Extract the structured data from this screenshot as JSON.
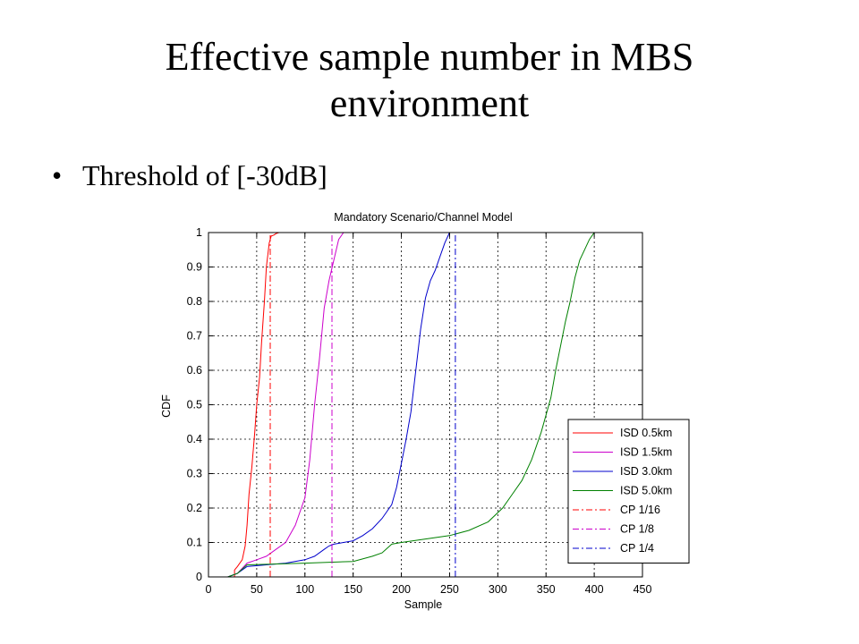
{
  "slide": {
    "title_line1": "Effective sample number in MBS",
    "title_line2": "environment",
    "bullets": [
      "Threshold of [-30dB]"
    ]
  },
  "chart_data": {
    "type": "line",
    "title": "Mandatory Scenario/Channel Model",
    "xlabel": "Sample",
    "ylabel": "CDF",
    "xlim": [
      0,
      450
    ],
    "ylim": [
      0,
      1
    ],
    "xticks": [
      0,
      50,
      100,
      150,
      200,
      250,
      300,
      350,
      400,
      450
    ],
    "yticks": [
      0,
      0.1,
      0.2,
      0.3,
      0.4,
      0.5,
      0.6,
      0.7,
      0.8,
      0.9,
      1
    ],
    "grid": true,
    "legend_position": "bottom-right",
    "series": [
      {
        "name": "ISD 0.5km",
        "color": "#ff0000",
        "style": "solid",
        "x": [
          20,
          27,
          27,
          30,
          35,
          38,
          40,
          42,
          45,
          48,
          50,
          53,
          55,
          58,
          60,
          63,
          65,
          68,
          70,
          73,
          75
        ],
        "y": [
          0,
          0,
          0.02,
          0.03,
          0.05,
          0.09,
          0.15,
          0.24,
          0.32,
          0.42,
          0.5,
          0.58,
          0.68,
          0.8,
          0.9,
          0.97,
          0.99,
          0.993,
          0.997,
          1.0,
          1.0
        ]
      },
      {
        "name": "ISD 1.5km",
        "color": "#cc00cc",
        "style": "solid",
        "x": [
          20,
          30,
          40,
          50,
          60,
          70,
          80,
          90,
          100,
          105,
          110,
          115,
          120,
          125,
          130,
          135,
          140,
          145
        ],
        "y": [
          0,
          0.01,
          0.04,
          0.05,
          0.06,
          0.08,
          0.1,
          0.15,
          0.23,
          0.34,
          0.5,
          0.63,
          0.78,
          0.86,
          0.92,
          0.98,
          1.0,
          1.0
        ]
      },
      {
        "name": "ISD 3.0km",
        "color": "#0000cc",
        "style": "solid",
        "x": [
          20,
          30,
          40,
          80,
          100,
          110,
          120,
          125,
          130,
          150,
          160,
          170,
          180,
          190,
          195,
          200,
          205,
          210,
          215,
          220,
          225,
          230,
          235,
          240,
          245,
          250,
          252
        ],
        "y": [
          0,
          0.01,
          0.03,
          0.04,
          0.05,
          0.06,
          0.08,
          0.09,
          0.095,
          0.105,
          0.12,
          0.14,
          0.17,
          0.21,
          0.26,
          0.33,
          0.4,
          0.48,
          0.6,
          0.72,
          0.81,
          0.86,
          0.89,
          0.93,
          0.97,
          1.0,
          1.0
        ]
      },
      {
        "name": "ISD 5.0km",
        "color": "#008000",
        "style": "solid",
        "x": [
          20,
          30,
          40,
          100,
          150,
          170,
          180,
          190,
          200,
          250,
          270,
          290,
          305,
          315,
          325,
          335,
          345,
          355,
          360,
          365,
          370,
          375,
          380,
          385,
          390,
          395,
          400,
          410
        ],
        "y": [
          0,
          0.01,
          0.035,
          0.04,
          0.045,
          0.06,
          0.07,
          0.095,
          0.1,
          0.12,
          0.135,
          0.16,
          0.2,
          0.24,
          0.28,
          0.34,
          0.42,
          0.52,
          0.6,
          0.67,
          0.74,
          0.8,
          0.87,
          0.92,
          0.95,
          0.98,
          1.0,
          1.0
        ]
      },
      {
        "name": "CP 1/16",
        "color": "#ff0000",
        "style": "dashdot",
        "x": [
          64,
          64
        ],
        "y": [
          0,
          1
        ]
      },
      {
        "name": "CP 1/8",
        "color": "#cc00cc",
        "style": "dashdot",
        "x": [
          128,
          128
        ],
        "y": [
          0,
          1
        ]
      },
      {
        "name": "CP 1/4",
        "color": "#0000cc",
        "style": "dashdot",
        "x": [
          256,
          256
        ],
        "y": [
          0,
          1
        ]
      }
    ]
  }
}
